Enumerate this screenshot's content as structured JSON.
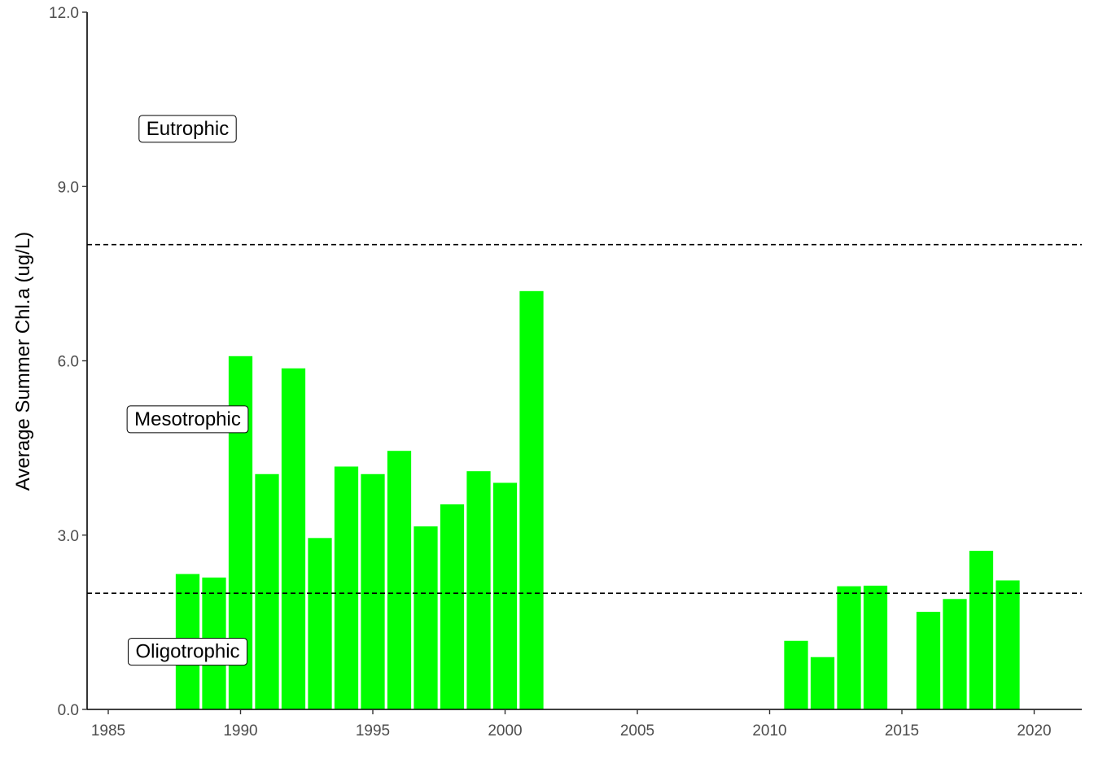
{
  "chart_data": {
    "type": "bar",
    "title": "",
    "xlabel": "",
    "ylabel": "Average Summer Chl.a (ug/L)",
    "xlim": [
      1984.2,
      2021.8
    ],
    "ylim": [
      0,
      12
    ],
    "x_ticks": [
      1985,
      1990,
      1995,
      2000,
      2005,
      2010,
      2015,
      2020
    ],
    "y_ticks": [
      0,
      3,
      6,
      9,
      12
    ],
    "y_tick_labels": [
      "0.0",
      "3.0",
      "6.0",
      "9.0",
      "12.0"
    ],
    "x": [
      1988,
      1989,
      1990,
      1991,
      1992,
      1993,
      1994,
      1995,
      1996,
      1997,
      1998,
      1999,
      2000,
      2001,
      2011,
      2012,
      2013,
      2014,
      2016,
      2017,
      2018,
      2019
    ],
    "values": [
      2.33,
      2.27,
      6.08,
      4.05,
      5.87,
      2.95,
      4.18,
      4.05,
      4.45,
      3.15,
      3.53,
      4.1,
      3.9,
      7.2,
      1.18,
      0.9,
      2.12,
      2.13,
      1.68,
      1.9,
      2.73,
      2.22
    ],
    "bar_color": "#00ff00",
    "grid": false,
    "reference_lines": [
      {
        "y": 2,
        "style": "dashed"
      },
      {
        "y": 8,
        "style": "dashed"
      }
    ],
    "annotations": [
      {
        "text": "Eutrophic",
        "x": 1988,
        "y": 10
      },
      {
        "text": "Mesotrophic",
        "x": 1988,
        "y": 5
      },
      {
        "text": "Oligotrophic",
        "x": 1988,
        "y": 1
      }
    ]
  }
}
